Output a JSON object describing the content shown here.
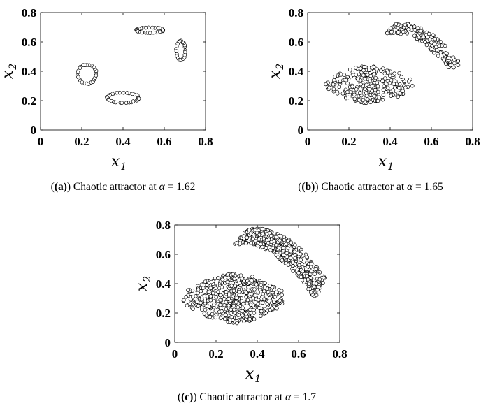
{
  "chart_data": [
    {
      "type": "scatter",
      "panel": "a",
      "caption": {
        "label": "(a)",
        "text": " Chaotic attractor at ",
        "param": "α",
        "value": " = 1.62"
      },
      "xlabel": {
        "base": "x",
        "sub": "1"
      },
      "ylabel": {
        "base": "x",
        "sub": "2"
      },
      "xlim": [
        0,
        0.8
      ],
      "ylim": [
        0,
        0.8
      ],
      "xticks": [
        "0",
        "0.2",
        "0.4",
        "0.6",
        "0.8"
      ],
      "yticks": [
        "0",
        "0.2",
        "0.4",
        "0.6",
        "0.8"
      ],
      "grid": false,
      "clusters": [
        {
          "kind": "ring",
          "cx": 0.225,
          "cy": 0.38,
          "rx": 0.045,
          "ry": 0.065,
          "n": 26
        },
        {
          "kind": "ring",
          "cx": 0.4,
          "cy": 0.22,
          "rx": 0.075,
          "ry": 0.035,
          "n": 30
        },
        {
          "kind": "ring",
          "cx": 0.53,
          "cy": 0.68,
          "rx": 0.065,
          "ry": 0.018,
          "n": 28
        },
        {
          "kind": "ring",
          "cx": 0.68,
          "cy": 0.54,
          "rx": 0.022,
          "ry": 0.065,
          "n": 22
        }
      ]
    },
    {
      "type": "scatter",
      "panel": "b",
      "caption": {
        "label": "(b)",
        "text": " Chaotic attractor at ",
        "param": "α",
        "value": " = 1.65"
      },
      "xlabel": {
        "base": "x",
        "sub": "1"
      },
      "ylabel": {
        "base": "x",
        "sub": "2"
      },
      "xlim": [
        0,
        0.8
      ],
      "ylim": [
        0,
        0.8
      ],
      "xticks": [
        "0",
        "0.2",
        "0.4",
        "0.6",
        "0.8"
      ],
      "yticks": [
        "0",
        "0.2",
        "0.4",
        "0.6",
        "0.8"
      ],
      "grid": false,
      "clusters": [
        {
          "kind": "blob",
          "cx": 0.3,
          "cy": 0.31,
          "rx": 0.17,
          "ry": 0.13,
          "n": 260
        },
        {
          "kind": "band",
          "x0": 0.4,
          "y0": 0.69,
          "x1": 0.72,
          "y1": 0.42,
          "w": 0.035,
          "n": 180
        }
      ]
    },
    {
      "type": "scatter",
      "panel": "c",
      "caption": {
        "label": "(c)",
        "text": " Chaotic attractor at ",
        "param": "α",
        "value": " = 1.7"
      },
      "xlabel": {
        "base": "x",
        "sub": "1"
      },
      "ylabel": {
        "base": "x",
        "sub": "2"
      },
      "xlim": [
        0,
        0.8
      ],
      "ylim": [
        0,
        0.8
      ],
      "xticks": [
        "0",
        "0.2",
        "0.4",
        "0.6",
        "0.8"
      ],
      "yticks": [
        "0",
        "0.2",
        "0.4",
        "0.6",
        "0.8"
      ],
      "grid": false,
      "clusters": [
        {
          "kind": "blob",
          "cx": 0.29,
          "cy": 0.3,
          "rx": 0.2,
          "ry": 0.17,
          "n": 520
        },
        {
          "kind": "band",
          "x0": 0.32,
          "y0": 0.72,
          "x1": 0.71,
          "y1": 0.36,
          "w": 0.055,
          "n": 430
        }
      ]
    }
  ]
}
